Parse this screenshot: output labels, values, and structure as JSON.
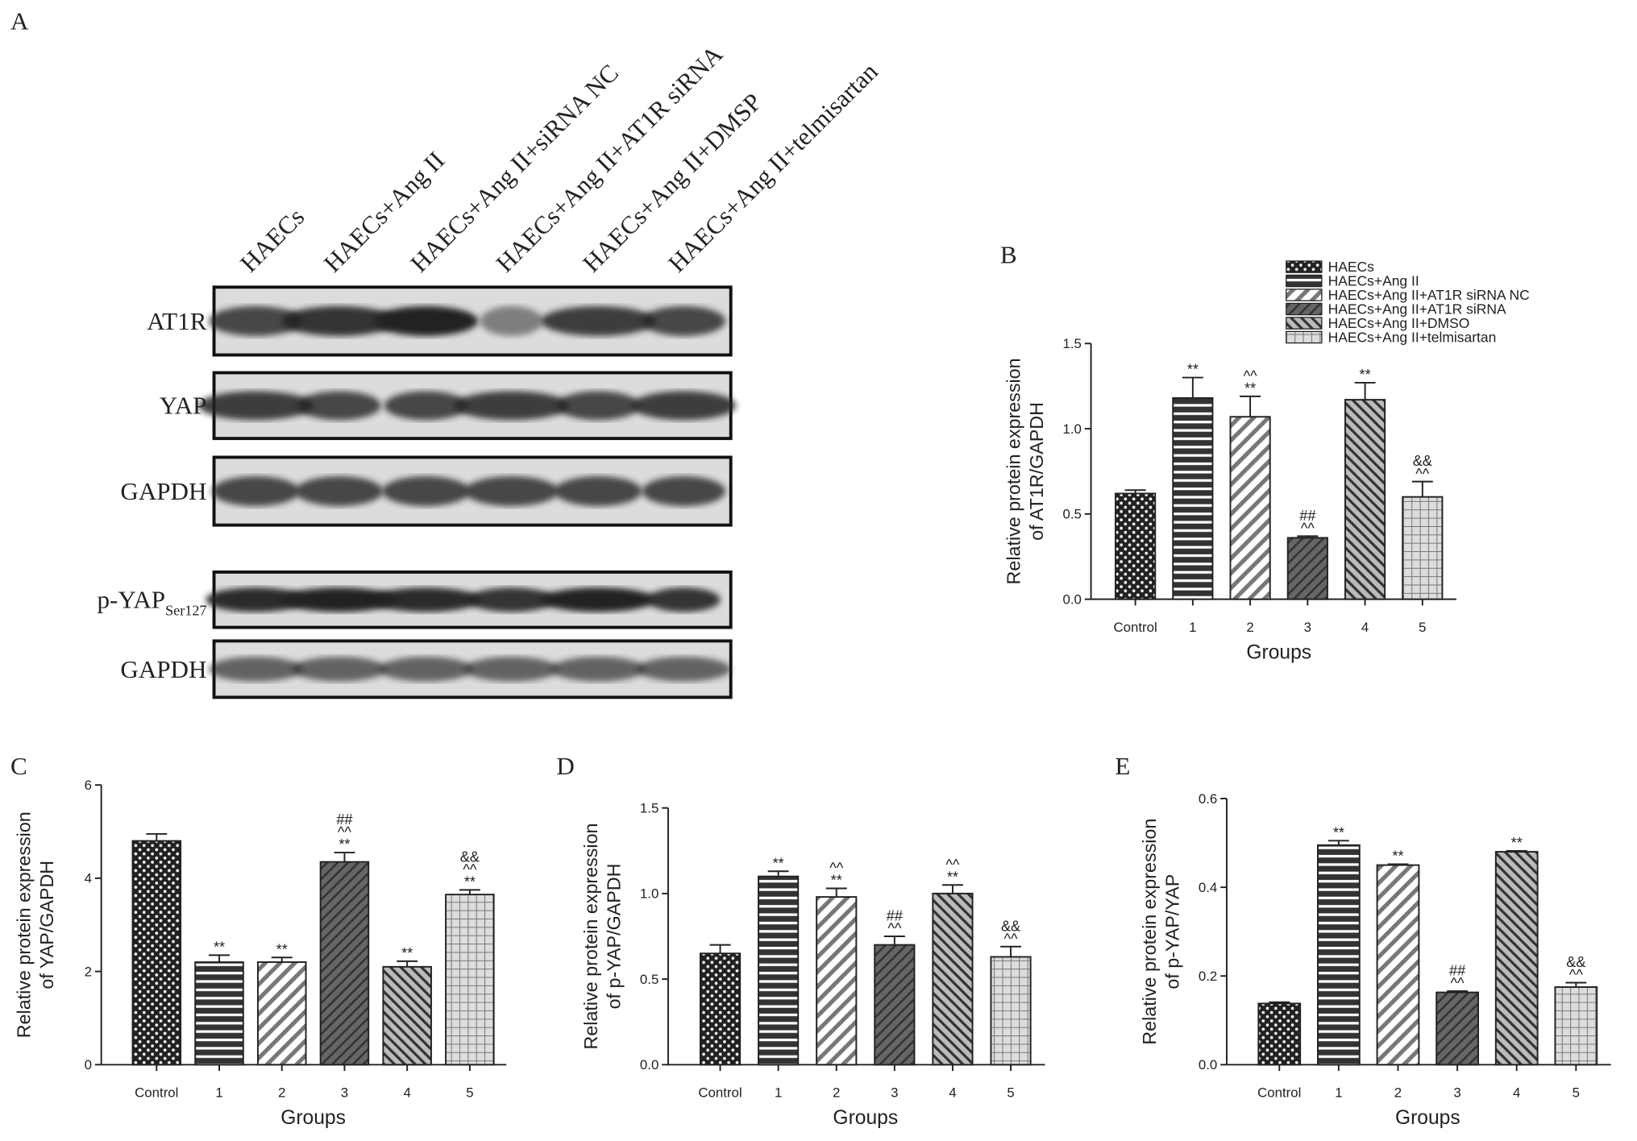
{
  "blot": {
    "panel": "A",
    "columns": [
      "HAECs",
      "HAECs+Ang II",
      "HAECs+Ang II+siRNA NC",
      "HAECs+Ang II+AT1R siRNA",
      "HAECs+Ang II+DMSP",
      "HAECs+Ang II+telmisartan"
    ],
    "rows": [
      {
        "text": "AT1R"
      },
      {
        "text": "YAP"
      },
      {
        "text": "GAPDH"
      },
      {
        "text": "p-YAP",
        "sub": "Ser127"
      },
      {
        "text": "GAPDH"
      }
    ]
  },
  "chart_data": [
    {
      "type": "bar",
      "panel": "B",
      "ylabel": [
        "Relative protein expression",
        "of AT1R/GAPDH"
      ],
      "xlabel": "Groups",
      "categories": [
        "Control",
        "1",
        "2",
        "3",
        "4",
        "5"
      ],
      "values": [
        0.62,
        1.18,
        1.07,
        0.36,
        1.17,
        0.6
      ],
      "errors": [
        0.02,
        0.12,
        0.12,
        0.01,
        0.1,
        0.09
      ],
      "annotations": [
        null,
        [
          "**"
        ],
        [
          "^^",
          "**"
        ],
        [
          "##",
          "^^"
        ],
        [
          "**"
        ],
        [
          "&&",
          "^^"
        ]
      ],
      "legend": [
        "HAECs",
        "HAECs+Ang II",
        "HAECs+Ang II+AT1R siRNA NC",
        "HAECs+Ang II+AT1R siRNA",
        "HAECs+Ang II+DMSO",
        "HAECs+Ang II+telmisartan"
      ],
      "patterns": [
        "dots",
        "hlines",
        "diag",
        "diagdark",
        "backdiag",
        "grid"
      ],
      "ylim": [
        0,
        1.5
      ],
      "yticks": [
        {
          "value": 0,
          "label": "0.0"
        },
        0.5,
        {
          "value": 1,
          "label": "1.0"
        },
        1.5
      ]
    },
    {
      "type": "bar",
      "panel": "C",
      "ylabel": [
        "Relative protein expression",
        "of YAP/GAPDH"
      ],
      "xlabel": "Groups",
      "categories": [
        "Control",
        "1",
        "2",
        "3",
        "4",
        "5"
      ],
      "values": [
        4.8,
        2.2,
        2.2,
        4.35,
        2.1,
        3.65
      ],
      "errors": [
        0.15,
        0.15,
        0.1,
        0.2,
        0.12,
        0.1
      ],
      "annotations": [
        null,
        [
          "**"
        ],
        [
          "**"
        ],
        [
          "##",
          "^^",
          "**"
        ],
        [
          "**"
        ],
        [
          "&&",
          "^^",
          "**"
        ]
      ],
      "patterns": [
        "dots",
        "hlines",
        "diag",
        "diagdark",
        "backdiag",
        "grid"
      ],
      "ylim": [
        0,
        6
      ],
      "yticks": [
        0,
        2,
        4,
        6
      ]
    },
    {
      "type": "bar",
      "panel": "D",
      "ylabel": [
        "Relative protein expression",
        "of p-YAP/GAPDH"
      ],
      "xlabel": "Groups",
      "categories": [
        "Control",
        "1",
        "2",
        "3",
        "4",
        "5"
      ],
      "values": [
        0.65,
        1.1,
        0.98,
        0.7,
        1.0,
        0.63
      ],
      "errors": [
        0.05,
        0.03,
        0.05,
        0.05,
        0.05,
        0.06
      ],
      "annotations": [
        null,
        [
          "**"
        ],
        [
          "^^",
          "**"
        ],
        [
          "##",
          "^^"
        ],
        [
          "^^",
          "**"
        ],
        [
          "&&",
          "^^"
        ]
      ],
      "patterns": [
        "dots",
        "hlines",
        "diag",
        "diagdark",
        "backdiag",
        "grid"
      ],
      "ylim": [
        0,
        1.5
      ],
      "yticks": [
        {
          "value": 0,
          "label": "0.0"
        },
        0.5,
        {
          "value": 1,
          "label": "1.0"
        },
        1.5
      ]
    },
    {
      "type": "bar",
      "panel": "E",
      "ylabel": [
        "Relative protein expression",
        "of p-YAP/YAP"
      ],
      "xlabel": "Groups",
      "categories": [
        "Control",
        "1",
        "2",
        "3",
        "4",
        "5"
      ],
      "values": [
        0.138,
        0.495,
        0.45,
        0.163,
        0.48,
        0.175
      ],
      "errors": [
        0.003,
        0.01,
        0.002,
        0.003,
        0.002,
        0.01
      ],
      "annotations": [
        null,
        [
          "**"
        ],
        [
          "**"
        ],
        [
          "##",
          "^^"
        ],
        [
          "**"
        ],
        [
          "&&",
          "^^"
        ]
      ],
      "patterns": [
        "dots",
        "hlines",
        "diag",
        "diagdark",
        "backdiag",
        "grid"
      ],
      "ylim": [
        0,
        0.6
      ],
      "yticks": [
        {
          "value": 0,
          "label": "0.0"
        },
        0.2,
        0.4,
        0.6
      ]
    }
  ]
}
